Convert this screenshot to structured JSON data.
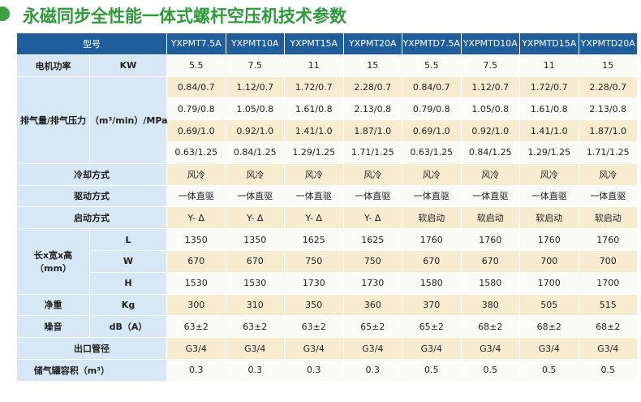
{
  "header": {
    "title": "永磁同步全性能一体式螺杆空压机技术参数"
  },
  "table": {
    "model_label": "型号",
    "models": [
      "YXPMT7.5A",
      "YXPMT10A",
      "YXPMT15A",
      "YXPMT20A",
      "YXPMTD7.5A",
      "YXPMTD10A",
      "YXPMTD15A",
      "YXPMTD20A"
    ],
    "groups": [
      {
        "label": "电机功率",
        "unit": "KW",
        "rows": [
          {
            "values": [
              "5.5",
              "7.5",
              "11",
              "15",
              "5.5",
              "7.5",
              "11",
              "15"
            ]
          }
        ]
      },
      {
        "label": "排气量/排气压力",
        "unit": "（m³/min）/MPa",
        "rows": [
          {
            "values": [
              "0.84/0.7",
              "1.12/0.7",
              "1.72/0.7",
              "2.28/0.7",
              "0.84/0.7",
              "1.12/0.7",
              "1.72/0.7",
              "2.28/0.7"
            ]
          },
          {
            "values": [
              "0.79/0.8",
              "1.05/0.8",
              "1.61/0.8",
              "2.13/0.8",
              "0.79/0.8",
              "1.05/0.8",
              "1.61/0.8",
              "2.13/0.8"
            ]
          },
          {
            "values": [
              "0.69/1.0",
              "0.92/1.0",
              "1.41/1.0",
              "1.87/1.0",
              "0.69/1.0",
              "0.92/1.0",
              "1.41/1.0",
              "1.87/1.0"
            ]
          },
          {
            "values": [
              "0.63/1.25",
              "0.84/1.25",
              "1.29/1.25",
              "1.71/1.25",
              "0.63/1.25",
              "0.84/1.25",
              "1.29/1.25",
              "1.71/1.25"
            ]
          }
        ]
      },
      {
        "label": "冷却方式",
        "rows": [
          {
            "values": [
              "风冷",
              "风冷",
              "风冷",
              "风冷",
              "风冷",
              "风冷",
              "风冷",
              "风冷"
            ]
          }
        ]
      },
      {
        "label": "驱动方式",
        "rows": [
          {
            "values": [
              "一体直驱",
              "一体直驱",
              "一体直驱",
              "一体直驱",
              "一体直驱",
              "一体直驱",
              "一体直驱",
              "一体直驱"
            ]
          }
        ]
      },
      {
        "label": "启动方式",
        "rows": [
          {
            "values": [
              "Y- Δ",
              "Y- Δ",
              "Y- Δ",
              "Y- Δ",
              "软启动",
              "软启动",
              "软启动",
              "软启动"
            ]
          }
        ]
      },
      {
        "label": "长x宽x高",
        "label_sub": "（mm）",
        "rows": [
          {
            "unit": "L",
            "values": [
              "1350",
              "1350",
              "1625",
              "1625",
              "1760",
              "1760",
              "1760",
              "1760"
            ]
          },
          {
            "unit": "W",
            "values": [
              "670",
              "670",
              "750",
              "750",
              "670",
              "670",
              "700",
              "700"
            ]
          },
          {
            "unit": "H",
            "values": [
              "1530",
              "1530",
              "1730",
              "1730",
              "1580",
              "1580",
              "1700",
              "1700"
            ]
          }
        ]
      },
      {
        "label": "净重",
        "unit": "Kg",
        "rows": [
          {
            "values": [
              "300",
              "310",
              "350",
              "360",
              "370",
              "380",
              "505",
              "515"
            ]
          }
        ]
      },
      {
        "label": "噪音",
        "unit": "dB（A）",
        "rows": [
          {
            "values": [
              "63±2",
              "63±2",
              "63±2",
              "65±2",
              "65±2",
              "68±2",
              "68±2",
              "68±2"
            ]
          }
        ]
      },
      {
        "label": "出口管径",
        "rows": [
          {
            "values": [
              "G3/4",
              "G3/4",
              "G3/4",
              "G3/4",
              "G3/4",
              "G3/4",
              "G3/4",
              "G3/4"
            ]
          }
        ]
      },
      {
        "label": "储气罐容积（m³）",
        "rows": [
          {
            "values": [
              "0.3",
              "0.3",
              "0.3",
              "0.3",
              "0.5",
              "0.5",
              "0.5",
              "0.5"
            ]
          }
        ]
      }
    ]
  }
}
